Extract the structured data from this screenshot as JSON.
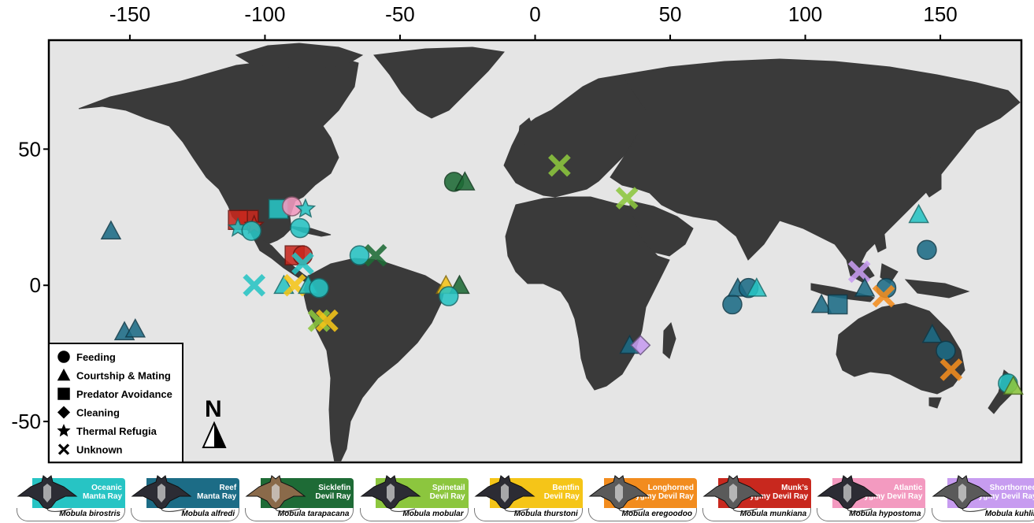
{
  "map": {
    "x_ticks": [
      "-150",
      "-100",
      "-50",
      "0",
      "50",
      "100",
      "150"
    ],
    "y_ticks": [
      "50",
      "0",
      "-50"
    ],
    "x_tick_values": [
      -150,
      -100,
      -50,
      0,
      50,
      100,
      150
    ],
    "y_tick_values": [
      50,
      0,
      -50
    ],
    "lon_range": [
      -180,
      180
    ],
    "lat_range": [
      -65,
      90
    ],
    "ocean_color": "#e5e5e5",
    "land_color": "#3a3a3a",
    "north_arrow_label": "N"
  },
  "legend": {
    "items": [
      {
        "shape": "circle",
        "label": "Feeding"
      },
      {
        "shape": "triangle",
        "label": "Courtship & Mating"
      },
      {
        "shape": "square",
        "label": "Predator Avoidance"
      },
      {
        "shape": "diamond",
        "label": "Cleaning"
      },
      {
        "shape": "star",
        "label": "Thermal Refugia"
      },
      {
        "shape": "x",
        "label": "Unknown"
      }
    ]
  },
  "species": [
    {
      "key": "birostris",
      "common_line1": "Oceanic",
      "common_line2": "Manta Ray",
      "scientific": "Mobula birostris",
      "color": "#27c4c4"
    },
    {
      "key": "alfredi",
      "common_line1": "Reef",
      "common_line2": "Manta Ray",
      "scientific": "Mobula alfredi",
      "color": "#1c6c86"
    },
    {
      "key": "tarapacana",
      "common_line1": "Sicklefin",
      "common_line2": "Devil Ray",
      "scientific": "Mobula tarapacana",
      "color": "#1e6b36"
    },
    {
      "key": "mobular",
      "common_line1": "Spinetail",
      "common_line2": "Devil Ray",
      "scientific": "Mobula mobular",
      "color": "#8cc63e"
    },
    {
      "key": "thurstoni",
      "common_line1": "Bentfin",
      "common_line2": "Devil Ray",
      "scientific": "Mobula thurstoni",
      "color": "#f5c518"
    },
    {
      "key": "eregoodoo",
      "common_line1": "Longhorned",
      "common_line2": "Pygmy Devil Ray",
      "scientific": "Mobula eregoodoo",
      "color": "#f28c1e"
    },
    {
      "key": "munkiana",
      "common_line1": "Munk’s",
      "common_line2": "Pygmy Devil Ray",
      "scientific": "Mobula munkiana",
      "color": "#c8281e"
    },
    {
      "key": "hypostoma",
      "common_line1": "Atlantic",
      "common_line2": "Pygmy Devil Ray",
      "scientific": "Mobula hypostoma",
      "color": "#f39ac0"
    },
    {
      "key": "kuhlii",
      "common_line1": "Shorthorned",
      "common_line2": "Pygmy Devil Ray",
      "scientific": "Mobula kuhlii",
      "color": "#c79cf0"
    }
  ],
  "observations": [
    {
      "lon": -157,
      "lat": 20,
      "shape": "triangle",
      "species": "alfredi"
    },
    {
      "lon": -152,
      "lat": -17,
      "shape": "triangle",
      "species": "alfredi"
    },
    {
      "lon": -148,
      "lat": -16,
      "shape": "triangle",
      "species": "alfredi"
    },
    {
      "lon": -106,
      "lat": 24,
      "shape": "square",
      "species": "munkiana"
    },
    {
      "lon": -110,
      "lat": 24,
      "shape": "square",
      "species": "munkiana"
    },
    {
      "lon": -104,
      "lat": 22,
      "shape": "star",
      "species": "munkiana"
    },
    {
      "lon": -110,
      "lat": 21,
      "shape": "star",
      "species": "birostris"
    },
    {
      "lon": -105,
      "lat": 20,
      "shape": "circle",
      "species": "birostris"
    },
    {
      "lon": -95,
      "lat": 28,
      "shape": "square",
      "species": "birostris"
    },
    {
      "lon": -90,
      "lat": 29,
      "shape": "circle",
      "species": "hypostoma"
    },
    {
      "lon": -85,
      "lat": 28,
      "shape": "star",
      "species": "birostris"
    },
    {
      "lon": -87,
      "lat": 21,
      "shape": "circle",
      "species": "birostris"
    },
    {
      "lon": -89,
      "lat": 11,
      "shape": "square",
      "species": "munkiana"
    },
    {
      "lon": -86,
      "lat": 11,
      "shape": "circle",
      "species": "munkiana"
    },
    {
      "lon": -86,
      "lat": 8,
      "shape": "x",
      "species": "birostris"
    },
    {
      "lon": -104,
      "lat": 0,
      "shape": "x",
      "species": "birostris"
    },
    {
      "lon": -93,
      "lat": 0,
      "shape": "triangle",
      "species": "birostris"
    },
    {
      "lon": -89,
      "lat": 0,
      "shape": "x",
      "species": "thurstoni"
    },
    {
      "lon": -84,
      "lat": 0,
      "shape": "triangle",
      "species": "birostris"
    },
    {
      "lon": -80,
      "lat": -1,
      "shape": "circle",
      "species": "birostris"
    },
    {
      "lon": -80,
      "lat": -13,
      "shape": "x",
      "species": "mobular"
    },
    {
      "lon": -77,
      "lat": -13,
      "shape": "x",
      "species": "thurstoni"
    },
    {
      "lon": -65,
      "lat": 11,
      "shape": "circle",
      "species": "birostris"
    },
    {
      "lon": -59,
      "lat": 11,
      "shape": "x",
      "species": "tarapacana"
    },
    {
      "lon": -30,
      "lat": 38,
      "shape": "circle",
      "species": "tarapacana"
    },
    {
      "lon": -26,
      "lat": 38,
      "shape": "triangle",
      "species": "tarapacana"
    },
    {
      "lon": -33,
      "lat": 0,
      "shape": "triangle",
      "species": "thurstoni"
    },
    {
      "lon": -28,
      "lat": 0,
      "shape": "triangle",
      "species": "tarapacana"
    },
    {
      "lon": -32,
      "lat": -4,
      "shape": "circle",
      "species": "birostris"
    },
    {
      "lon": 9,
      "lat": 44,
      "shape": "x",
      "species": "mobular"
    },
    {
      "lon": 34,
      "lat": 32,
      "shape": "x",
      "species": "mobular"
    },
    {
      "lon": 35,
      "lat": -22,
      "shape": "triangle",
      "species": "alfredi"
    },
    {
      "lon": 39,
      "lat": -22,
      "shape": "diamond",
      "species": "kuhlii"
    },
    {
      "lon": 73,
      "lat": -7,
      "shape": "circle",
      "species": "alfredi"
    },
    {
      "lon": 75,
      "lat": -1,
      "shape": "triangle",
      "species": "alfredi"
    },
    {
      "lon": 79,
      "lat": -1,
      "shape": "circle",
      "species": "alfredi"
    },
    {
      "lon": 82,
      "lat": -1,
      "shape": "triangle",
      "species": "birostris"
    },
    {
      "lon": 106,
      "lat": -7,
      "shape": "triangle",
      "species": "alfredi"
    },
    {
      "lon": 112,
      "lat": -7,
      "shape": "square",
      "species": "alfredi"
    },
    {
      "lon": 120,
      "lat": 5,
      "shape": "x",
      "species": "kuhlii"
    },
    {
      "lon": 122,
      "lat": -1,
      "shape": "triangle",
      "species": "alfredi"
    },
    {
      "lon": 130,
      "lat": -1,
      "shape": "circle",
      "species": "alfredi"
    },
    {
      "lon": 129,
      "lat": -4,
      "shape": "x",
      "species": "eregoodoo"
    },
    {
      "lon": 142,
      "lat": 26,
      "shape": "triangle",
      "species": "birostris"
    },
    {
      "lon": 145,
      "lat": 13,
      "shape": "circle",
      "species": "alfredi"
    },
    {
      "lon": 147,
      "lat": -18,
      "shape": "triangle",
      "species": "alfredi"
    },
    {
      "lon": 152,
      "lat": -24,
      "shape": "circle",
      "species": "alfredi"
    },
    {
      "lon": 154,
      "lat": -31,
      "shape": "x",
      "species": "eregoodoo"
    },
    {
      "lon": 175,
      "lat": -36,
      "shape": "circle",
      "species": "birostris"
    },
    {
      "lon": 177,
      "lat": -37,
      "shape": "triangle",
      "species": "mobular"
    }
  ]
}
